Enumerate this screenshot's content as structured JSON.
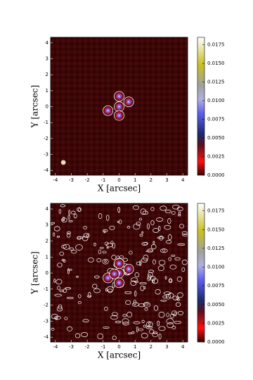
{
  "chart_data": [
    {
      "type": "image",
      "xlabel": "X [arcsec]",
      "ylabel": "Y [arcsec]",
      "xlim": [
        -4.3,
        4.3
      ],
      "ylim": [
        -4.3,
        4.35
      ],
      "xticks": [
        -4,
        -3,
        -2,
        -1,
        0,
        1,
        2,
        3,
        4
      ],
      "yticks": [
        -4,
        -3,
        -2,
        -1,
        0,
        1,
        2,
        3,
        4
      ],
      "clim": [
        0,
        0.0185
      ],
      "cticks": [
        {
          "value": 0,
          "label": "0.0000"
        },
        {
          "value": 0.0025,
          "label": "0.0025"
        },
        {
          "value": 0.005,
          "label": "0.0050"
        },
        {
          "value": 0.0075,
          "label": "0.0075"
        },
        {
          "value": 0.01,
          "label": "0.0100"
        },
        {
          "value": 0.0125,
          "label": "0.0125"
        },
        {
          "value": 0.015,
          "label": "0.0150"
        },
        {
          "value": 0.0175,
          "label": "0.0175"
        }
      ],
      "contours": true,
      "sources": {
        "x": [
          0,
          0,
          0,
          -0.7,
          0.6,
          -3.5
        ],
        "y": [
          0.65,
          0,
          -0.55,
          -0.25,
          0.3,
          -3.5
        ]
      }
    },
    {
      "type": "image",
      "xlabel": "X [arcsec]",
      "ylabel": "Y [arcsec]",
      "xlim": [
        -4.3,
        4.3
      ],
      "ylim": [
        -4.3,
        4.35
      ],
      "xticks": [
        -4,
        -3,
        -2,
        -1,
        0,
        1,
        2,
        3,
        4
      ],
      "yticks": [
        -4,
        -3,
        -2,
        -1,
        0,
        1,
        2,
        3,
        4
      ],
      "clim": [
        0,
        0.0185
      ],
      "cticks": [
        {
          "value": 0,
          "label": "0.0000"
        },
        {
          "value": 0.0025,
          "label": "0.0025"
        },
        {
          "value": 0.005,
          "label": "0.0050"
        },
        {
          "value": 0.0075,
          "label": "0.0075"
        },
        {
          "value": 0.01,
          "label": "0.0100"
        },
        {
          "value": 0.0125,
          "label": "0.0125"
        },
        {
          "value": 0.015,
          "label": "0.0150"
        },
        {
          "value": 0.0175,
          "label": "0.0175"
        }
      ],
      "contours": true,
      "sources": {
        "x": [
          0,
          0,
          0.6,
          -0.7,
          0,
          -0.3
        ],
        "y": [
          0.6,
          0,
          0.25,
          -0.3,
          -0.6,
          -0.05
        ]
      }
    }
  ]
}
